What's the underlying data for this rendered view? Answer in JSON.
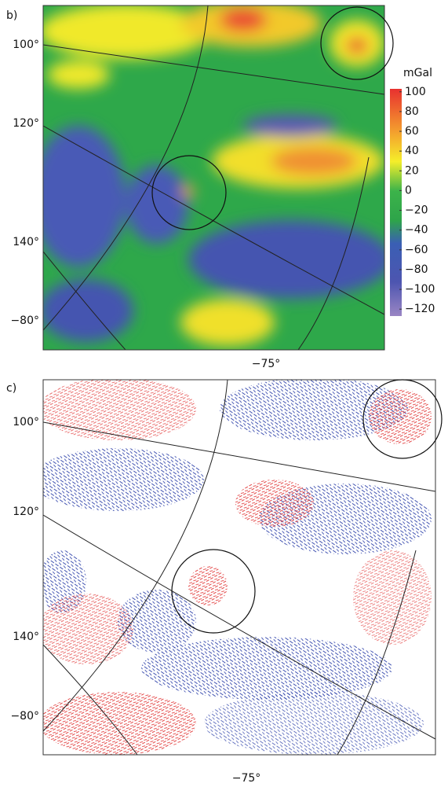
{
  "panels": [
    {
      "label": "b)",
      "lat_labels": [
        "100°",
        "120°",
        "140°",
        "−80°"
      ],
      "lon_label": "−75°",
      "colorbar": {
        "title": "mGal",
        "clim": [
          -127,
          103
        ],
        "ticks": [
          100,
          80,
          60,
          40,
          20,
          0,
          {
            "value": -20,
            "label": "−20"
          },
          {
            "value": -40,
            "label": "−40"
          },
          {
            "value": -60,
            "label": "−60"
          },
          {
            "value": -80,
            "label": "−80"
          },
          {
            "value": -100,
            "label": "−100"
          },
          {
            "value": -120,
            "label": "−120"
          }
        ]
      }
    },
    {
      "label": "c)",
      "lat_labels": [
        "100°",
        "120°",
        "140°",
        "−80°"
      ],
      "lon_label": "−75°"
    }
  ]
}
